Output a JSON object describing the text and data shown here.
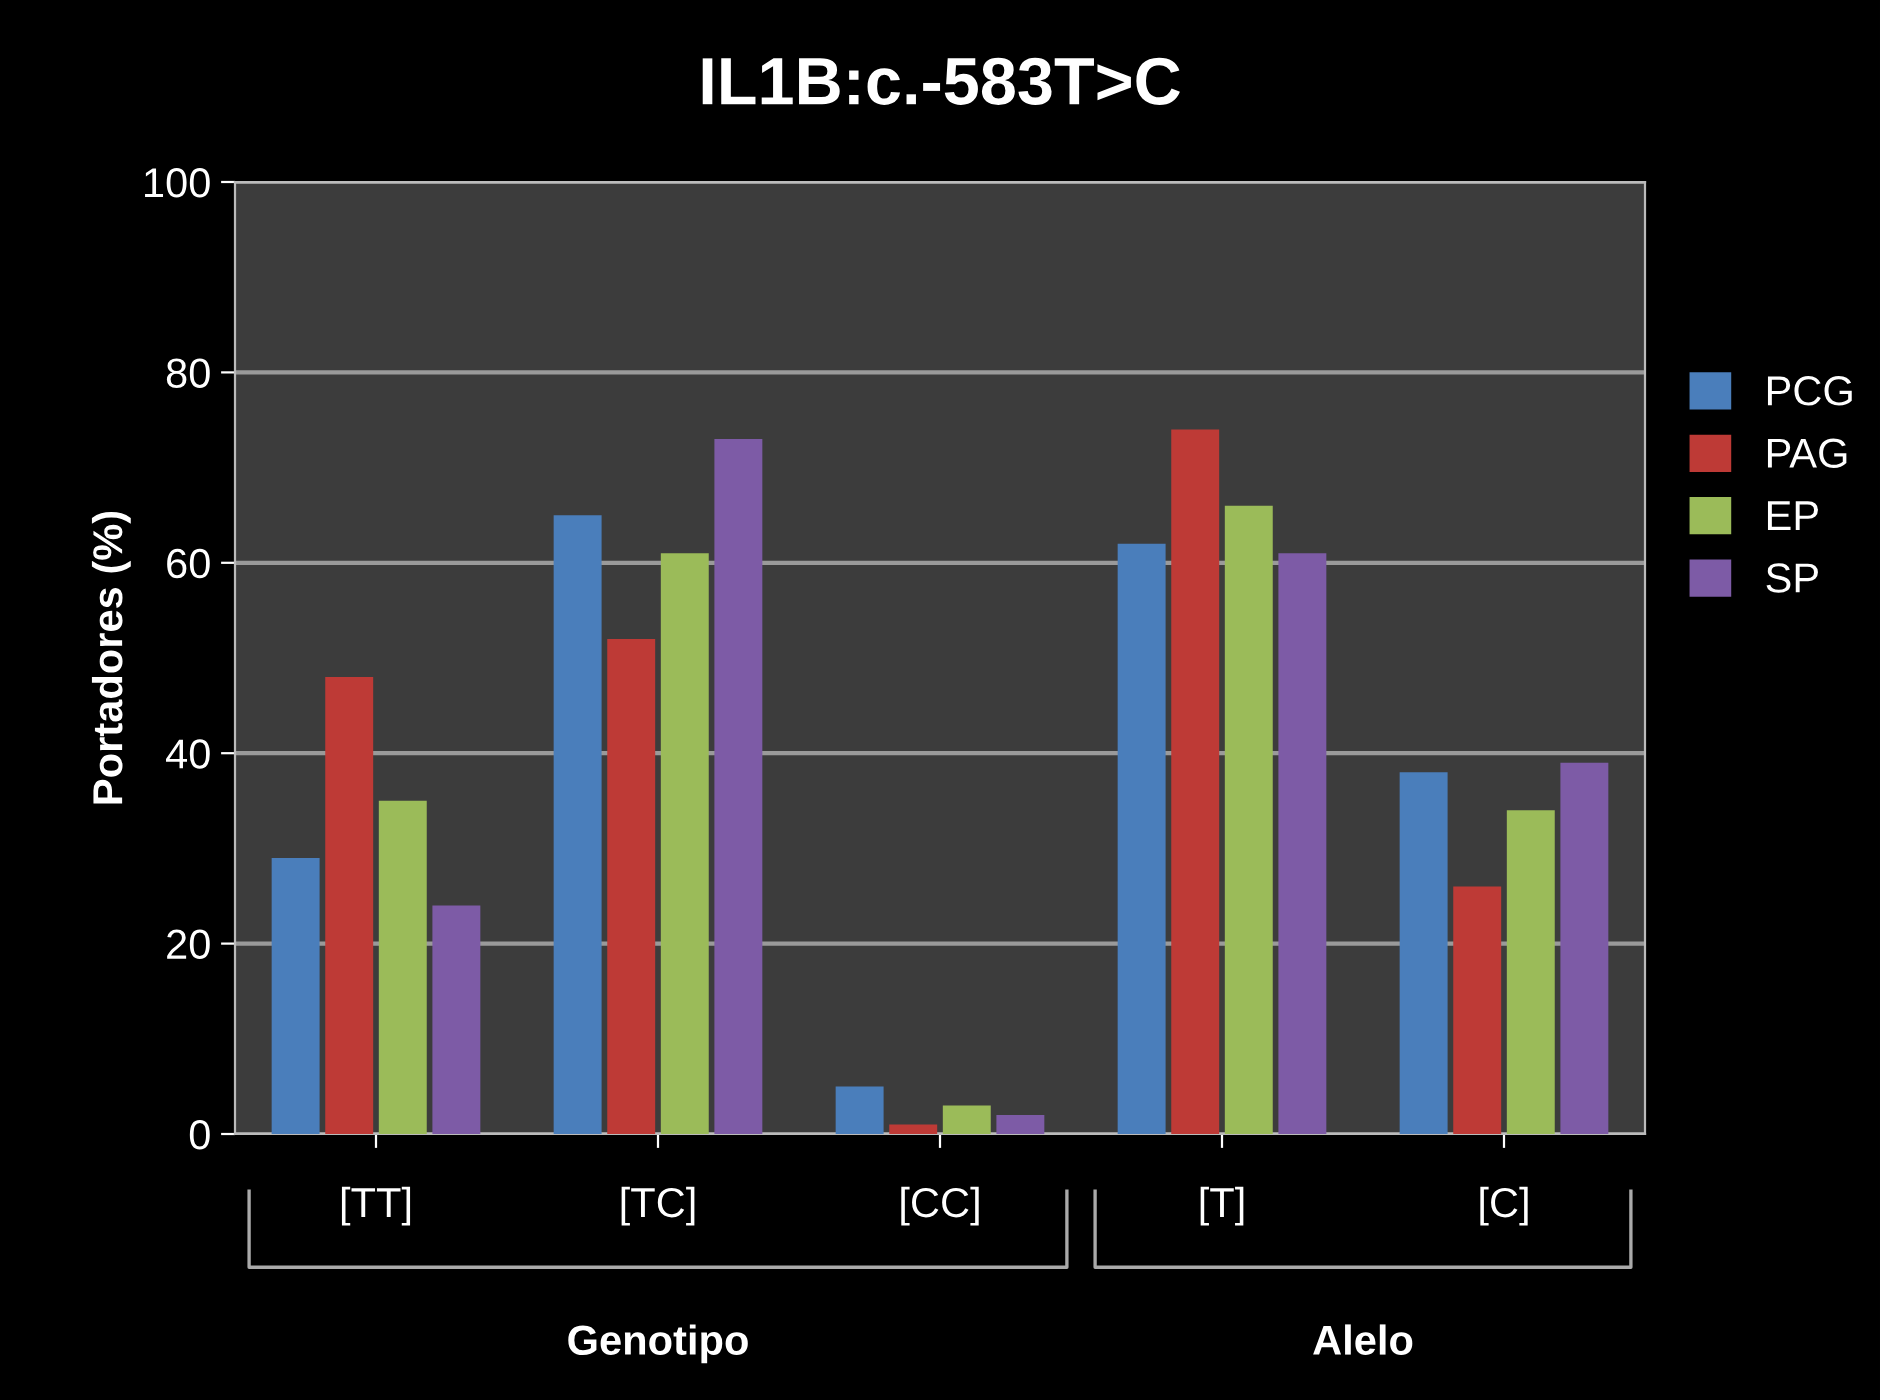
{
  "chart_data": {
    "type": "bar",
    "title": "IL1B:c.-583T>C",
    "ylabel": "Portadores (%)",
    "categories": [
      "[TT]",
      "[TC]",
      "[CC]",
      "[T]",
      "[C]"
    ],
    "series": [
      {
        "name": "PCG",
        "color": "#4a7ebb",
        "values": [
          29,
          65,
          5,
          62,
          38
        ]
      },
      {
        "name": "PAG",
        "color": "#be3a36",
        "values": [
          48,
          52,
          1,
          74,
          26
        ]
      },
      {
        "name": "EP",
        "color": "#9bbb59",
        "values": [
          35,
          61,
          3,
          66,
          34
        ]
      },
      {
        "name": "SP",
        "color": "#7d5ba6",
        "values": [
          24,
          73,
          2,
          61,
          39
        ]
      }
    ],
    "annotations": [
      "Genotipo",
      "Alelo"
    ],
    "ylim": [
      0,
      100
    ],
    "yticks": [
      0,
      20,
      40,
      60,
      80,
      100
    ],
    "grid": "y",
    "legend": "right"
  }
}
